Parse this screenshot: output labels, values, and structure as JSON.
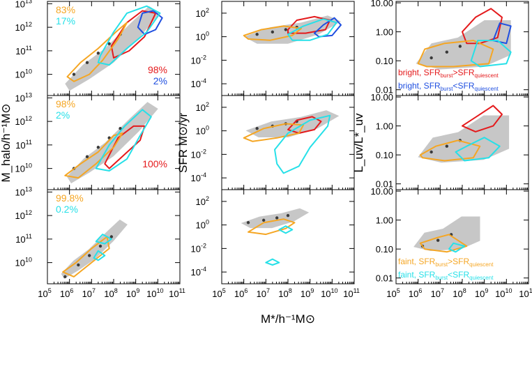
{
  "chart_data": {
    "type": "scatter",
    "layout": "3x3 grid of panels",
    "column_x_axis": {
      "label": "M*/h⁻¹M⊙",
      "scale": "log",
      "xlim": [
        100000,
        100000000000
      ],
      "tick_labels": [
        "10⁵",
        "10⁶",
        "10⁷",
        "10⁸",
        "10⁹",
        "10¹⁰",
        "10¹¹"
      ]
    },
    "right_col_x_tick_labels": [
      "10⁵",
      "10⁶",
      "10⁷",
      "10⁸",
      "10⁹",
      "10¹⁰",
      "10¹"
    ],
    "rows": [
      {
        "ylabel": "M_halo/h⁻¹M⊙",
        "scale": "log",
        "ylim": [
          1000000000,
          30000000000000
        ],
        "tick_labels": [
          "10¹⁰",
          "10¹¹",
          "10¹²",
          "10¹³"
        ]
      },
      {
        "ylabel": "SFR M⊙/yr",
        "scale": "log",
        "ylim": [
          1e-05,
          1000
        ],
        "tick_labels": [
          "10⁻⁴",
          "10⁻²",
          "10⁰",
          "10²"
        ]
      },
      {
        "ylabel": "L_uv/L*_uv",
        "scale": "log",
        "ylim": [
          0.005,
          12
        ],
        "tick_labels": [
          "0.01",
          "0.10",
          "1.00",
          "10.00"
        ]
      }
    ],
    "panel_percentages": [
      {
        "row": 0,
        "upper_left": [
          {
            "text": "83%",
            "color": "#f5a623"
          },
          {
            "text": "17%",
            "color": "#26e0e8"
          }
        ],
        "lower_right": [
          {
            "text": "98%",
            "color": "#e41a1c"
          },
          {
            "text": "2%",
            "color": "#1f4fe0"
          }
        ]
      },
      {
        "row": 1,
        "upper_left": [
          {
            "text": "98%",
            "color": "#f5a623"
          },
          {
            "text": "2%",
            "color": "#26e0e8"
          }
        ],
        "lower_right": [
          {
            "text": "100%",
            "color": "#e41a1c"
          }
        ]
      },
      {
        "row": 2,
        "upper_left": [
          {
            "text": "99.8%",
            "color": "#f5a623"
          },
          {
            "text": "0.2%",
            "color": "#26e0e8"
          }
        ],
        "lower_right": []
      }
    ],
    "legend_bright": [
      {
        "pre": "bright, SFR",
        "sub1": "burst",
        "mid": ">SFR",
        "sub2": "quiescent",
        "color": "#e41a1c"
      },
      {
        "pre": "bright, SFR",
        "sub1": "burst",
        "mid": "<SFR",
        "sub2": "quiescent",
        "color": "#1f4fe0"
      }
    ],
    "legend_faint": [
      {
        "pre": "faint, SFR",
        "sub1": "burst",
        "mid": ">SFR",
        "sub2": "quiescent",
        "color": "#f5a623"
      },
      {
        "pre": "faint, SFR",
        "sub1": "burst",
        "mid": "<SFR",
        "sub2": "quiescent",
        "color": "#26e0e8"
      }
    ],
    "series_colors": {
      "bright_burst_gt_quiescent": "#e41a1c",
      "bright_burst_lt_quiescent": "#1f4fe0",
      "faint_burst_gt_quiescent": "#f5a623",
      "faint_burst_lt_quiescent": "#26e0e8",
      "density": "#9a9a9a"
    },
    "contours": {
      "mhalo_vs_mstar": {
        "bright_gt": [
          [
            7.9,
            11.2
          ],
          [
            8.6,
            12.2
          ],
          [
            9.3,
            12.7
          ],
          [
            9.9,
            12.6
          ],
          [
            9.4,
            11.6
          ],
          [
            8.7,
            11.0
          ],
          [
            8.0,
            10.7
          ]
        ],
        "bright_lt": [
          [
            9.1,
            12.0
          ],
          [
            9.3,
            12.6
          ],
          [
            9.8,
            12.7
          ],
          [
            10.2,
            12.4
          ],
          [
            9.9,
            11.9
          ],
          [
            9.4,
            11.7
          ]
        ],
        "faint_gt": [
          [
            5.9,
            9.9
          ],
          [
            6.5,
            10.5
          ],
          [
            7.3,
            11.1
          ],
          [
            8.1,
            11.8
          ],
          [
            8.6,
            12.2
          ],
          [
            8.2,
            11.5
          ],
          [
            7.5,
            10.6
          ],
          [
            6.9,
            10.0
          ],
          [
            6.2,
            9.7
          ]
        ],
        "faint_lt": [
          [
            7.4,
            10.8
          ],
          [
            8.0,
            11.8
          ],
          [
            8.6,
            12.6
          ],
          [
            9.5,
            12.9
          ],
          [
            10.1,
            12.6
          ],
          [
            9.5,
            11.8
          ],
          [
            8.6,
            11.1
          ],
          [
            7.8,
            10.4
          ],
          [
            7.3,
            10.5
          ]
        ]
      },
      "mhalo_vs_mstar_2": {
        "bright_gt": [
          [
            7.6,
            10.2
          ],
          [
            8.2,
            11.3
          ],
          [
            8.9,
            11.8
          ],
          [
            9.4,
            11.8
          ],
          [
            9.2,
            11.2
          ],
          [
            8.5,
            10.6
          ],
          [
            7.8,
            10.0
          ]
        ],
        "faint_gt": [
          [
            5.8,
            9.7
          ],
          [
            6.5,
            10.2
          ],
          [
            7.3,
            10.7
          ],
          [
            8.0,
            11.4
          ],
          [
            8.4,
            11.5
          ],
          [
            8.0,
            10.9
          ],
          [
            7.2,
            10.2
          ],
          [
            6.4,
            9.6
          ]
        ],
        "faint_lt": [
          [
            7.2,
            10.0
          ],
          [
            7.8,
            11.0
          ],
          [
            8.5,
            11.8
          ],
          [
            9.3,
            12.5
          ],
          [
            9.7,
            12.2
          ],
          [
            9.2,
            11.4
          ],
          [
            8.6,
            10.4
          ],
          [
            7.8,
            9.9
          ]
        ]
      },
      "mhalo_vs_mstar_3": {
        "faint_gt": [
          [
            5.7,
            9.6
          ],
          [
            6.3,
            10.0
          ],
          [
            7.0,
            10.6
          ],
          [
            7.7,
            11.1
          ],
          [
            7.8,
            10.6
          ],
          [
            7.0,
            10.0
          ],
          [
            6.2,
            9.4
          ]
        ],
        "faint_lt_a": [
          [
            7.2,
            10.9
          ],
          [
            7.5,
            11.2
          ],
          [
            7.9,
            11.0
          ],
          [
            7.6,
            10.8
          ]
        ],
        "faint_lt_b": [
          [
            7.1,
            10.2
          ],
          [
            7.3,
            10.5
          ],
          [
            7.6,
            10.3
          ],
          [
            7.3,
            10.1
          ]
        ]
      },
      "sfr_vs_mstar": {
        "bright_gt": [
          [
            8.0,
            0.6
          ],
          [
            8.4,
            1.4
          ],
          [
            9.2,
            1.7
          ],
          [
            9.9,
            1.4
          ],
          [
            9.7,
            0.6
          ],
          [
            8.8,
            0.3
          ],
          [
            8.0,
            0.3
          ]
        ],
        "bright_lt": [
          [
            9.2,
            0.3
          ],
          [
            9.6,
            1.0
          ],
          [
            10.1,
            1.6
          ],
          [
            10.4,
            1.0
          ],
          [
            10.0,
            0.1
          ],
          [
            9.4,
            0.0
          ]
        ],
        "faint_gt": [
          [
            6.0,
            0.1
          ],
          [
            6.8,
            0.6
          ],
          [
            7.8,
            0.9
          ],
          [
            8.6,
            0.7
          ],
          [
            8.2,
            0.1
          ],
          [
            7.2,
            -0.3
          ],
          [
            6.2,
            -0.2
          ]
        ],
        "faint_lt": [
          [
            8.0,
            0.2
          ],
          [
            8.7,
            0.9
          ],
          [
            9.6,
            1.5
          ],
          [
            10.2,
            1.2
          ],
          [
            9.8,
            0.2
          ],
          [
            9.0,
            -0.3
          ],
          [
            8.2,
            -0.3
          ]
        ]
      },
      "sfr_vs_mstar_2": {
        "bright_gt": [
          [
            8.0,
            0.1
          ],
          [
            8.4,
            0.9
          ],
          [
            9.1,
            1.2
          ],
          [
            9.5,
            0.8
          ],
          [
            9.2,
            0.1
          ],
          [
            8.5,
            -0.2
          ]
        ],
        "faint_gt": [
          [
            6.0,
            -0.6
          ],
          [
            6.9,
            0.2
          ],
          [
            7.9,
            0.6
          ],
          [
            8.7,
            0.5
          ],
          [
            8.5,
            -0.2
          ],
          [
            7.5,
            -0.6
          ],
          [
            6.4,
            -0.9
          ]
        ],
        "faint_lt": [
          [
            7.4,
            -1.6
          ],
          [
            8.0,
            -0.2
          ],
          [
            9.0,
            0.9
          ],
          [
            9.9,
            1.3
          ],
          [
            9.8,
            0.4
          ],
          [
            9.0,
            -1.4
          ],
          [
            8.5,
            -3.0
          ],
          [
            7.8,
            -3.6
          ],
          [
            7.5,
            -2.8
          ]
        ]
      },
      "sfr_vs_mstar_3": {
        "faint_gt": [
          [
            6.2,
            -0.6
          ],
          [
            6.9,
            0.2
          ],
          [
            7.8,
            0.5
          ],
          [
            8.3,
            0.2
          ],
          [
            7.9,
            -0.3
          ],
          [
            7.0,
            -0.8
          ]
        ],
        "faint_lt_a": [
          [
            7.6,
            -0.4
          ],
          [
            7.9,
            -0.1
          ],
          [
            8.2,
            -0.4
          ],
          [
            7.9,
            -0.7
          ]
        ],
        "faint_lt_b": [
          [
            7.0,
            -3.2
          ],
          [
            7.3,
            -2.9
          ],
          [
            7.6,
            -3.2
          ],
          [
            7.3,
            -3.4
          ]
        ]
      },
      "luv_vs_mstar": {
        "bright_gt": [
          [
            8.0,
            0.0
          ],
          [
            8.6,
            0.5
          ],
          [
            9.3,
            0.8
          ],
          [
            9.8,
            0.5
          ],
          [
            9.6,
            -0.2
          ],
          [
            8.8,
            -0.4
          ],
          [
            8.2,
            -0.4
          ]
        ],
        "bright_lt": [
          [
            9.4,
            -0.3
          ],
          [
            9.7,
            0.3
          ],
          [
            10.2,
            0.2
          ],
          [
            10.0,
            -0.4
          ]
        ],
        "faint_gt": [
          [
            6.0,
            -1.1
          ],
          [
            6.3,
            -0.6
          ],
          [
            7.2,
            -0.4
          ],
          [
            8.5,
            -0.3
          ],
          [
            9.4,
            -0.6
          ],
          [
            9.2,
            -1.1
          ],
          [
            7.6,
            -1.2
          ],
          [
            6.4,
            -1.2
          ]
        ],
        "faint_lt": [
          [
            8.4,
            -1.0
          ],
          [
            8.7,
            -0.3
          ],
          [
            9.6,
            -0.3
          ],
          [
            10.2,
            -0.7
          ],
          [
            10.0,
            -1.1
          ],
          [
            8.8,
            -1.2
          ]
        ]
      },
      "luv_vs_mstar_2": {
        "bright_gt": [
          [
            8.0,
            0.0
          ],
          [
            8.6,
            0.3
          ],
          [
            9.4,
            0.7
          ],
          [
            9.8,
            0.4
          ],
          [
            9.4,
            0.0
          ],
          [
            8.6,
            -0.2
          ]
        ],
        "faint_gt": [
          [
            6.1,
            -1.0
          ],
          [
            6.8,
            -0.7
          ],
          [
            7.8,
            -0.5
          ],
          [
            8.8,
            -0.7
          ],
          [
            8.5,
            -1.1
          ],
          [
            7.2,
            -1.2
          ],
          [
            6.2,
            -1.1
          ]
        ],
        "faint_lt": [
          [
            7.7,
            -0.9
          ],
          [
            8.2,
            -0.7
          ],
          [
            9.0,
            -0.4
          ],
          [
            9.7,
            -0.7
          ],
          [
            9.2,
            -1.1
          ],
          [
            8.1,
            -1.2
          ]
        ]
      },
      "luv_vs_mstar_3": {
        "faint_gt": [
          [
            6.1,
            -0.8
          ],
          [
            6.9,
            -0.6
          ],
          [
            7.4,
            -0.5
          ],
          [
            7.8,
            -0.7
          ],
          [
            8.2,
            -0.9
          ],
          [
            7.3,
            -1.1
          ],
          [
            6.3,
            -1.0
          ]
        ],
        "faint_lt": [
          [
            7.4,
            -1.0
          ],
          [
            7.6,
            -0.8
          ],
          [
            8.1,
            -0.9
          ],
          [
            7.7,
            -1.1
          ]
        ]
      }
    },
    "density_regions": {
      "mhalo_vs_mstar": [
        [
          5.8,
          9.6
        ],
        [
          6.6,
          10.4
        ],
        [
          7.6,
          11.1
        ],
        [
          8.8,
          12.2
        ],
        [
          9.6,
          12.9
        ],
        [
          10.1,
          12.6
        ],
        [
          9.2,
          11.6
        ],
        [
          8.0,
          10.5
        ],
        [
          6.9,
          9.8
        ],
        [
          6.0,
          9.3
        ]
      ],
      "sfr_vs_mstar": [
        [
          6.0,
          0.0
        ],
        [
          7.2,
          0.8
        ],
        [
          8.6,
          1.2
        ],
        [
          9.8,
          1.8
        ],
        [
          10.4,
          1.3
        ],
        [
          9.4,
          0.2
        ],
        [
          8.0,
          -0.6
        ],
        [
          6.6,
          -0.6
        ]
      ],
      "luv_vs_mstar": [
        [
          5.9,
          -1.1
        ],
        [
          6.6,
          -0.4
        ],
        [
          7.8,
          -0.2
        ],
        [
          9.0,
          0.4
        ],
        [
          10.2,
          0.4
        ],
        [
          10.2,
          -0.8
        ],
        [
          9.0,
          -1.2
        ],
        [
          7.0,
          -1.3
        ]
      ]
    },
    "density_cores": {
      "mhalo_vs_mstar": [
        [
          6.2,
          10.0
        ],
        [
          6.8,
          10.5
        ],
        [
          7.3,
          10.9
        ],
        [
          7.8,
          11.3
        ],
        [
          8.3,
          11.7
        ]
      ],
      "sfr_vs_mstar": [
        [
          6.6,
          0.2
        ],
        [
          7.3,
          0.4
        ],
        [
          7.9,
          0.6
        ],
        [
          8.4,
          0.8
        ]
      ],
      "luv_vs_mstar": [
        [
          6.6,
          -0.9
        ],
        [
          7.3,
          -0.7
        ],
        [
          7.9,
          -0.5
        ]
      ]
    }
  }
}
